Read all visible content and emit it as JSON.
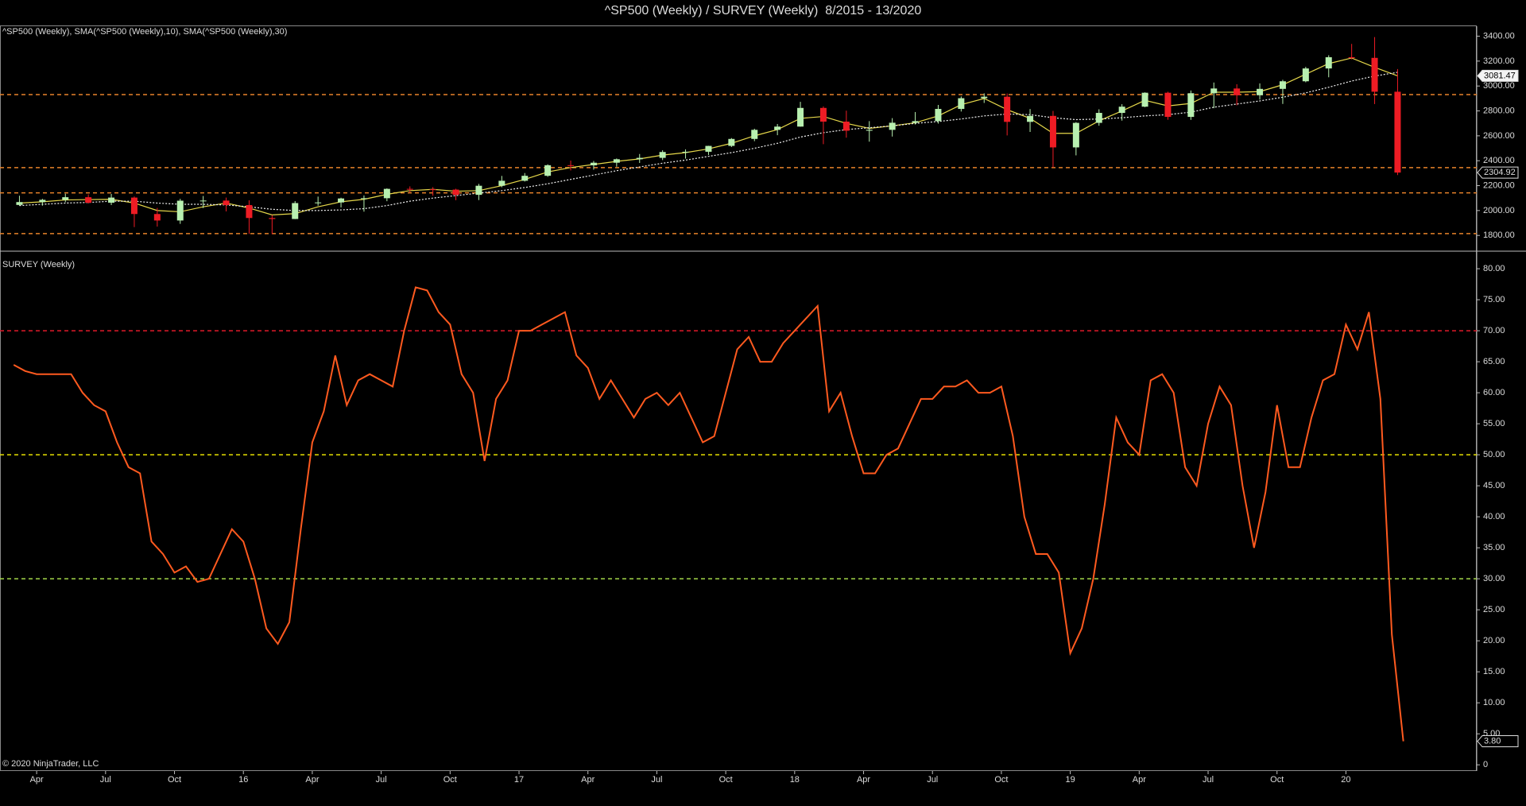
{
  "title": "^SP500 (Weekly) / SURVEY (Weekly)  8/2015 - 13/2020",
  "copyright": "© 2020 NinjaTrader, LLC",
  "chart_data": [
    {
      "type": "candlestick",
      "label": "^SP500 (Weekly), SMA(^SP500 (Weekly),10), SMA(^SP500 (Weekly),30)",
      "up_color": "#b8f0b0",
      "down_color": "#ee1c24",
      "open": [
        2045,
        2068,
        2086,
        2107,
        2063,
        2104,
        1972,
        1920,
        2079,
        2080,
        2044,
        1940,
        1932,
        2060,
        2065,
        2097,
        2099,
        2174,
        2171,
        2168,
        2126,
        2199,
        2239,
        2279,
        2364,
        2363,
        2384,
        2412,
        2423,
        2470,
        2472,
        2519,
        2575,
        2648,
        2674,
        2824,
        2714,
        2641,
        2648,
        2705,
        2718,
        2816,
        2902,
        2914,
        2712,
        2760,
        2507,
        2704,
        2784,
        2834,
        2946,
        2752,
        2942,
        2980,
        2926,
        2977,
        3038,
        3141,
        3231,
        3226,
        2954
      ],
      "high": [
        2119,
        2094,
        2135,
        2130,
        2133,
        2113,
        2021,
        2094,
        2117,
        2104,
        2082,
        1963,
        2076,
        2112,
        2103,
        2121,
        2178,
        2194,
        2188,
        2175,
        2214,
        2278,
        2301,
        2371,
        2401,
        2398,
        2418,
        2454,
        2484,
        2491,
        2520,
        2582,
        2657,
        2695,
        2873,
        2836,
        2802,
        2718,
        2742,
        2791,
        2848,
        2916,
        2941,
        2940,
        2815,
        2800,
        2710,
        2813,
        2854,
        2949,
        2954,
        2964,
        3028,
        3014,
        3021,
        3050,
        3154,
        3247,
        3338,
        3393,
        3136
      ],
      "low": [
        2040,
        2039,
        2067,
        2056,
        2044,
        1867,
        1871,
        1893,
        2020,
        1993,
        1812,
        1810,
        1931,
        2039,
        2025,
        1991,
        2075,
        2147,
        2119,
        2083,
        2084,
        2187,
        2233,
        2271,
        2322,
        2328,
        2352,
        2382,
        2405,
        2417,
        2446,
        2510,
        2557,
        2605,
        2673,
        2533,
        2585,
        2553,
        2594,
        2691,
        2698,
        2795,
        2864,
        2603,
        2631,
        2346,
        2443,
        2681,
        2722,
        2830,
        2729,
        2728,
        2822,
        2845,
        2891,
        2856,
        3030,
        3070,
        3214,
        2855,
        2285
      ],
      "close": [
        2068,
        2086,
        2107,
        2063,
        2104,
        1972,
        1920,
        2079,
        2080,
        2044,
        1940,
        1932,
        2060,
        2065,
        2097,
        2099,
        2174,
        2171,
        2168,
        2126,
        2199,
        2239,
        2279,
        2364,
        2363,
        2384,
        2412,
        2423,
        2470,
        2472,
        2519,
        2575,
        2648,
        2674,
        2824,
        2714,
        2641,
        2648,
        2705,
        2718,
        2816,
        2902,
        2914,
        2712,
        2760,
        2507,
        2704,
        2784,
        2834,
        2946,
        2752,
        2942,
        2980,
        2926,
        2977,
        3038,
        3141,
        3231,
        3226,
        2954,
        2304.92
      ],
      "overlays": [
        {
          "color": "#e6d84a",
          "values": [
            2060,
            2070,
            2085,
            2088,
            2090,
            2060,
            2000,
            1990,
            2030,
            2060,
            2020,
            1965,
            1975,
            2030,
            2070,
            2090,
            2130,
            2160,
            2170,
            2155,
            2160,
            2200,
            2250,
            2310,
            2345,
            2370,
            2395,
            2415,
            2445,
            2465,
            2495,
            2540,
            2600,
            2650,
            2740,
            2755,
            2700,
            2660,
            2680,
            2705,
            2760,
            2850,
            2900,
            2810,
            2740,
            2620,
            2620,
            2720,
            2800,
            2885,
            2840,
            2860,
            2950,
            2950,
            2955,
            3010,
            3095,
            3180,
            3225,
            3150,
            3081.47
          ]
        },
        {
          "color": "#f0f0f0",
          "values": [
            2040,
            2050,
            2060,
            2065,
            2075,
            2075,
            2060,
            2050,
            2050,
            2045,
            2030,
            2010,
            2000,
            2000,
            2005,
            2015,
            2040,
            2075,
            2100,
            2120,
            2140,
            2160,
            2185,
            2215,
            2250,
            2285,
            2320,
            2350,
            2380,
            2405,
            2435,
            2465,
            2500,
            2540,
            2590,
            2625,
            2650,
            2665,
            2680,
            2700,
            2715,
            2735,
            2760,
            2775,
            2770,
            2745,
            2730,
            2735,
            2745,
            2760,
            2770,
            2790,
            2830,
            2855,
            2880,
            2910,
            2945,
            2990,
            3040,
            3080,
            3110
          ]
        }
      ],
      "ylim": [
        1680,
        3480
      ],
      "yticks": [
        {
          "value": 1800,
          "label": "1800.00"
        },
        {
          "value": 2000,
          "label": "2000.00"
        },
        {
          "value": 2200,
          "label": "2200.00"
        },
        {
          "value": 2400,
          "label": "2400.00"
        },
        {
          "value": 2600,
          "label": "2600.00"
        },
        {
          "value": 2800,
          "label": "2800.00"
        },
        {
          "value": 3000,
          "label": "3000.00"
        },
        {
          "value": 3200,
          "label": "3200.00"
        },
        {
          "value": 3400,
          "label": "3400.00"
        }
      ],
      "reference_lines": [
        {
          "value": 2931,
          "color": "#e8822a"
        },
        {
          "value": 2345,
          "color": "#e8822a"
        },
        {
          "value": 2142,
          "color": "#e8822a"
        },
        {
          "value": 1815,
          "color": "#e8822a"
        }
      ]
    },
    {
      "type": "line",
      "label": "SURVEY (Weekly)",
      "color": "#ff5a1f",
      "categories": [
        null,
        null,
        "Apr",
        null,
        null,
        null,
        null,
        null,
        "Jul",
        null,
        null,
        null,
        null,
        null,
        "Oct",
        null,
        null,
        null,
        null,
        null,
        "16",
        null,
        null,
        null,
        null,
        null,
        "Apr",
        null,
        null,
        null,
        null,
        null,
        "Jul",
        null,
        null,
        null,
        null,
        null,
        "Oct",
        null,
        null,
        null,
        null,
        null,
        "17",
        null,
        null,
        null,
        null,
        null,
        "Apr",
        null,
        null,
        null,
        null,
        null,
        "Jul",
        null,
        null,
        null,
        null,
        null,
        "Oct",
        null,
        null,
        null,
        null,
        null,
        "18",
        null,
        null,
        null,
        null,
        null,
        "Apr",
        null,
        null,
        null,
        null,
        null,
        "Jul",
        null,
        null,
        null,
        null,
        null,
        "Oct",
        null,
        null,
        null,
        null,
        null,
        "19",
        null,
        null,
        null,
        null,
        null,
        "Apr",
        null,
        null,
        null,
        null,
        null,
        "Jul",
        null,
        null,
        null,
        null,
        null,
        "Oct",
        null,
        null,
        null,
        null,
        null,
        "20",
        null,
        null,
        null,
        null,
        null
      ],
      "values": [
        64.5,
        63.5,
        63,
        63,
        63,
        63,
        60,
        58,
        57,
        52,
        48,
        47,
        36,
        34,
        31,
        32,
        29.5,
        30,
        34,
        38,
        36,
        30,
        22,
        19.5,
        23,
        38,
        52,
        57,
        66,
        58,
        62,
        63,
        62,
        61,
        70,
        77,
        76.5,
        73,
        71,
        63,
        60,
        49,
        59,
        62,
        70,
        70,
        71,
        72,
        73,
        66,
        64,
        59,
        62,
        59,
        56,
        59,
        60,
        58,
        60,
        56,
        52,
        53,
        60,
        67,
        69,
        65,
        65,
        68,
        70,
        72,
        74,
        57,
        60,
        53,
        47,
        47,
        50,
        51,
        55,
        59,
        59,
        61,
        61,
        62,
        60,
        60,
        61,
        53,
        40,
        34,
        34,
        31,
        18,
        22,
        30,
        42,
        56,
        52,
        50,
        62,
        63,
        60,
        48,
        45,
        55,
        61,
        58,
        45,
        35,
        44,
        58,
        48,
        48,
        56,
        62,
        63,
        71,
        67,
        73,
        59,
        21,
        3.8
      ],
      "last_value_label": "3.80",
      "ylim": [
        -1,
        82.7
      ],
      "yticks": [
        0,
        {
          "value": 5,
          "label": "5.00"
        },
        {
          "value": 10,
          "label": "10.00"
        },
        {
          "value": 15,
          "label": "15.00"
        },
        {
          "value": 20,
          "label": "20.00"
        },
        {
          "value": 25,
          "label": "25.00"
        },
        {
          "value": 30,
          "label": "30.00"
        },
        {
          "value": 35,
          "label": "35.00"
        },
        {
          "value": 40,
          "label": "40.00"
        },
        {
          "value": 45,
          "label": "45.00"
        },
        {
          "value": 50,
          "label": "50.00"
        },
        {
          "value": 55,
          "label": "55.00"
        },
        {
          "value": 60,
          "label": "60.00"
        },
        {
          "value": 65,
          "label": "65.00"
        },
        {
          "value": 70,
          "label": "70.00"
        },
        {
          "value": 75,
          "label": "75.00"
        },
        {
          "value": 80,
          "label": "80.00"
        }
      ],
      "reference_lines": [
        {
          "value": 70,
          "color": "#e0192a"
        },
        {
          "value": 50,
          "color": "#e6e000"
        },
        {
          "value": 30,
          "color": "#a4d64a"
        }
      ]
    }
  ]
}
